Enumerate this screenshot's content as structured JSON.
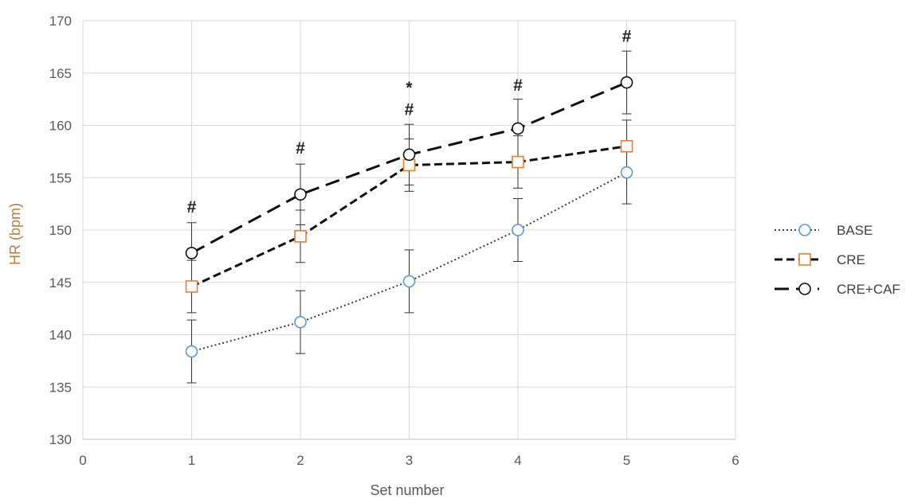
{
  "chart_data": {
    "type": "line",
    "xlabel": "Set number",
    "ylabel": "HR (bpm)",
    "xlim": [
      0,
      6
    ],
    "ylim": [
      130,
      170
    ],
    "x_ticks": [
      "0",
      "1",
      "2",
      "3",
      "4",
      "5",
      "6"
    ],
    "y_ticks": [
      "130",
      "135",
      "140",
      "145",
      "150",
      "155",
      "160",
      "165",
      "170"
    ],
    "grid": true,
    "legend_position": "right",
    "x": [
      1,
      2,
      3,
      4,
      5
    ],
    "series": [
      {
        "name": "BASE",
        "values": [
          138.4,
          141.2,
          145.1,
          150.0,
          155.5
        ],
        "errors": [
          3.0,
          3.0,
          3.0,
          3.0,
          3.0
        ],
        "line_style": "dotted",
        "line_color": "#404040",
        "marker": "circle",
        "marker_color": "#5b9bd5"
      },
      {
        "name": "CRE",
        "values": [
          144.6,
          149.4,
          156.2,
          156.5,
          158.0
        ],
        "errors": [
          2.5,
          2.5,
          2.5,
          2.5,
          2.5
        ],
        "line_style": "short-dash",
        "line_color": "#111111",
        "marker": "square",
        "marker_color": "#ed7d31"
      },
      {
        "name": "CRE+CAF",
        "values": [
          147.8,
          153.4,
          157.2,
          159.7,
          164.1
        ],
        "errors": [
          2.9,
          2.9,
          2.9,
          2.8,
          3.0
        ],
        "line_style": "long-dash",
        "line_color": "#111111",
        "marker": "circle",
        "marker_color": "#111111"
      }
    ],
    "annotations": [
      {
        "text": "#",
        "x": 1,
        "y": 152.3
      },
      {
        "text": "#",
        "x": 2,
        "y": 157.9
      },
      {
        "text": "#",
        "x": 3,
        "y": 161.6
      },
      {
        "text": "*",
        "x": 3,
        "y": 163.7
      },
      {
        "text": "#",
        "x": 4,
        "y": 163.9
      },
      {
        "text": "#",
        "x": 5,
        "y": 168.6
      }
    ]
  }
}
